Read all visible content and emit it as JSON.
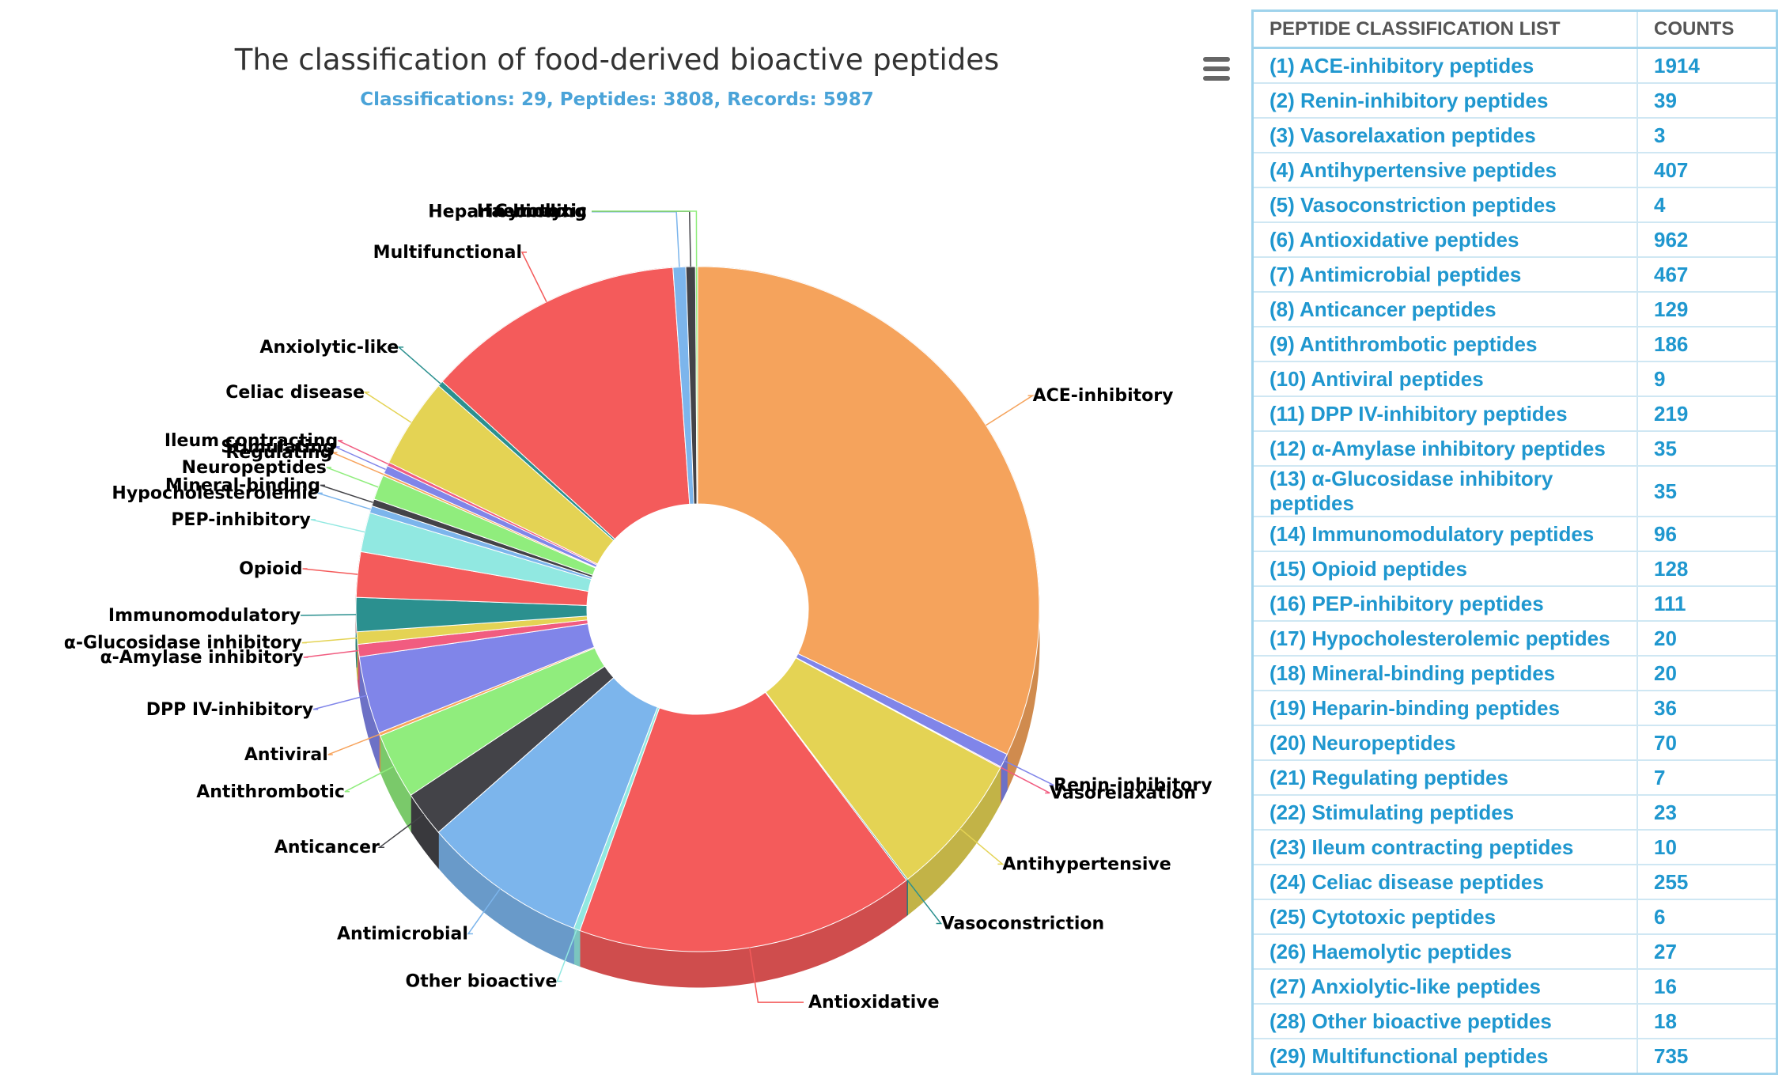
{
  "chart_data": {
    "type": "pie",
    "title": "The classification of food-derived bioactive peptides",
    "subtitle": "Classifications: 29, Peptides: 3808, Records: 5987",
    "slices": [
      {
        "label": "ACE-inhibitory",
        "value": 1914,
        "color": "#f5a35c"
      },
      {
        "label": "Renin-inhibitory",
        "value": 39,
        "color": "#8085e9"
      },
      {
        "label": "Vasorelaxation",
        "value": 3,
        "color": "#f15c80"
      },
      {
        "label": "Antihypertensive",
        "value": 407,
        "color": "#e4d354"
      },
      {
        "label": "Vasoconstriction",
        "value": 4,
        "color": "#2b908f"
      },
      {
        "label": "Antioxidative",
        "value": 962,
        "color": "#f45b5b"
      },
      {
        "label": "Other bioactive",
        "value": 18,
        "color": "#91e8e1"
      },
      {
        "label": "Antimicrobial",
        "value": 467,
        "color": "#7cb5ec"
      },
      {
        "label": "Anticancer",
        "value": 129,
        "color": "#434348"
      },
      {
        "label": "Antithrombotic",
        "value": 186,
        "color": "#90ed7d"
      },
      {
        "label": "Antiviral",
        "value": 9,
        "color": "#f7a35c"
      },
      {
        "label": "DPP IV-inhibitory",
        "value": 219,
        "color": "#8085e9"
      },
      {
        "label": "α-Amylase inhibitory",
        "value": 35,
        "color": "#f15c80"
      },
      {
        "label": "α-Glucosidase inhibitory",
        "value": 35,
        "color": "#e4d354"
      },
      {
        "label": "Immunomodulatory",
        "value": 96,
        "color": "#2b908f"
      },
      {
        "label": "Opioid",
        "value": 128,
        "color": "#f45b5b"
      },
      {
        "label": "PEP-inhibitory",
        "value": 111,
        "color": "#91e8e1"
      },
      {
        "label": "Hypocholesterolemic",
        "value": 20,
        "color": "#7cb5ec"
      },
      {
        "label": "Mineral-binding",
        "value": 20,
        "color": "#434348"
      },
      {
        "label": "Neuropeptides",
        "value": 70,
        "color": "#90ed7d"
      },
      {
        "label": "Regulating",
        "value": 7,
        "color": "#f7a35c"
      },
      {
        "label": "Stimulating",
        "value": 23,
        "color": "#8085e9"
      },
      {
        "label": "Ileum contracting",
        "value": 10,
        "color": "#f15c80"
      },
      {
        "label": "Celiac disease",
        "value": 255,
        "color": "#e4d354"
      },
      {
        "label": "Anxiolytic-like",
        "value": 16,
        "color": "#2b908f"
      },
      {
        "label": "Multifunctional",
        "value": 735,
        "color": "#f45b5b"
      },
      {
        "label": "Heparin-binding",
        "value": 36,
        "color": "#7cb5ec"
      },
      {
        "label": "Haemolytic",
        "value": 27,
        "color": "#434348"
      },
      {
        "label": "Cytotoxic",
        "value": 6,
        "color": "#90ed7d"
      }
    ]
  },
  "table": {
    "header_name": "PEPTIDE CLASSIFICATION LIST",
    "header_count": "COUNTS",
    "rows": [
      {
        "name": "(1) ACE-inhibitory peptides",
        "count": "1914"
      },
      {
        "name": "(2) Renin-inhibitory peptides",
        "count": "39"
      },
      {
        "name": "(3) Vasorelaxation peptides",
        "count": "3"
      },
      {
        "name": "(4) Antihypertensive peptides",
        "count": "407"
      },
      {
        "name": "(5) Vasoconstriction peptides",
        "count": "4"
      },
      {
        "name": "(6) Antioxidative peptides",
        "count": "962"
      },
      {
        "name": "(7) Antimicrobial peptides",
        "count": "467"
      },
      {
        "name": "(8) Anticancer peptides",
        "count": "129"
      },
      {
        "name": "(9) Antithrombotic peptides",
        "count": "186"
      },
      {
        "name": "(10) Antiviral peptides",
        "count": "9"
      },
      {
        "name": "(11) DPP IV-inhibitory peptides",
        "count": "219"
      },
      {
        "name": "(12) α-Amylase inhibitory peptides",
        "count": "35"
      },
      {
        "name": "(13) α-Glucosidase inhibitory peptides",
        "count": "35"
      },
      {
        "name": "(14) Immunomodulatory peptides",
        "count": "96"
      },
      {
        "name": "(15) Opioid peptides",
        "count": "128"
      },
      {
        "name": "(16) PEP-inhibitory peptides",
        "count": "111"
      },
      {
        "name": "(17) Hypocholesterolemic peptides",
        "count": "20"
      },
      {
        "name": "(18) Mineral-binding peptides",
        "count": "20"
      },
      {
        "name": "(19) Heparin-binding peptides",
        "count": "36"
      },
      {
        "name": "(20) Neuropeptides",
        "count": "70"
      },
      {
        "name": "(21) Regulating peptides",
        "count": "7"
      },
      {
        "name": "(22) Stimulating peptides",
        "count": "23"
      },
      {
        "name": "(23) Ileum contracting peptides",
        "count": "10"
      },
      {
        "name": "(24) Celiac disease peptides",
        "count": "255"
      },
      {
        "name": "(25) Cytotoxic peptides",
        "count": "6"
      },
      {
        "name": "(26) Haemolytic peptides",
        "count": "27"
      },
      {
        "name": "(27) Anxiolytic-like peptides",
        "count": "16"
      },
      {
        "name": "(28) Other bioactive peptides",
        "count": "18"
      },
      {
        "name": "(29) Multifunctional peptides",
        "count": "735"
      }
    ]
  },
  "menu_icon": "hamburger-menu-icon"
}
